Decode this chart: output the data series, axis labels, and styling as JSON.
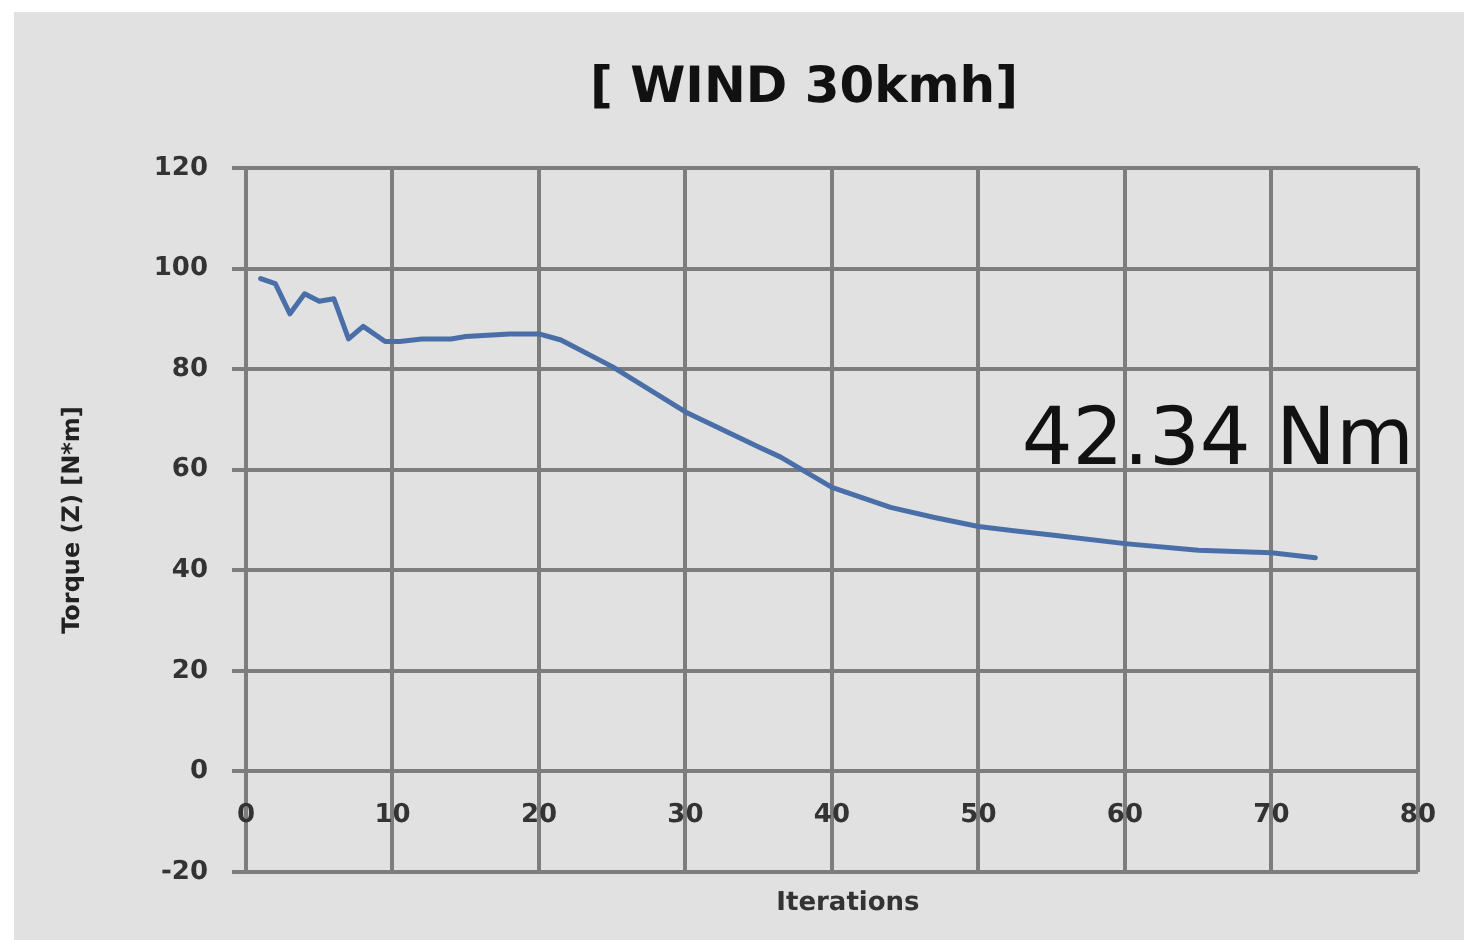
{
  "chart_data": {
    "type": "line",
    "title": "[ WIND 30kmh]",
    "xlabel": "Iterations",
    "ylabel": "Torque (Z) [N*m]",
    "annotations": [
      "42.34 Nm"
    ],
    "series": [
      {
        "color": "#4a6fa8",
        "x": [
          1,
          2,
          3,
          4,
          5,
          6,
          7,
          8,
          9.5,
          10.5,
          12,
          14,
          15,
          18,
          20,
          21.5,
          25,
          30,
          35,
          36.5,
          40,
          42,
          44,
          47,
          50,
          55,
          60,
          65,
          70,
          73
        ],
        "values": [
          98,
          97,
          91,
          95,
          93.5,
          94,
          86,
          88.5,
          85.5,
          85.5,
          86,
          86,
          86.5,
          87,
          87,
          85.8,
          80.5,
          71.5,
          64.5,
          62.5,
          56.5,
          54.5,
          52.5,
          50.5,
          48.7,
          47,
          45.3,
          44,
          43.5,
          42.5
        ]
      }
    ],
    "xlim": [
      0,
      80
    ],
    "xticks": [
      0,
      10,
      20,
      30,
      40,
      50,
      60,
      70,
      80
    ],
    "ylim": [
      -20,
      120
    ],
    "yticks": [
      -20,
      0,
      20,
      40,
      60,
      80,
      100,
      120
    ],
    "grid": true,
    "legend": false,
    "marker": "none"
  }
}
